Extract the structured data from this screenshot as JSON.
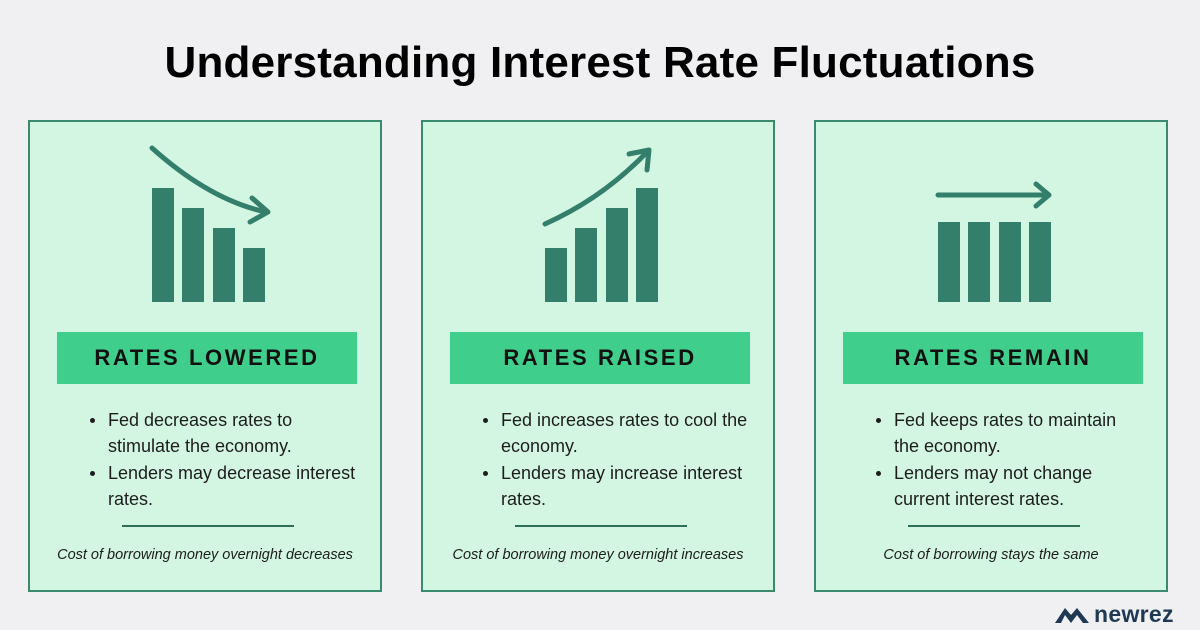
{
  "title": "Understanding Interest Rate Fluctuations",
  "colors": {
    "background": "#f0f0f2",
    "card_fill": "#d2f6e2",
    "card_border": "#3a8a6f",
    "band": "#3fce8b",
    "icon": "#347f6b",
    "logo": "#1f3954"
  },
  "cards": [
    {
      "icon": "bar-chart-falling-arrow-icon",
      "heading": "RATES LOWERED",
      "points": [
        "Fed decreases rates to stimulate the economy.",
        "Lenders may decrease interest rates."
      ],
      "note": "Cost of borrowing money overnight decreases"
    },
    {
      "icon": "bar-chart-rising-arrow-icon",
      "heading": "RATES RAISED",
      "points": [
        "Fed increases rates to cool the economy.",
        "Lenders may increase interest rates."
      ],
      "note": "Cost of borrowing money overnight increases"
    },
    {
      "icon": "bar-chart-flat-arrow-icon",
      "heading": "RATES REMAIN",
      "points": [
        "Fed keeps rates to maintain the economy.",
        "Lenders may not change current interest rates."
      ],
      "note": "Cost of borrowing stays the same"
    }
  ],
  "logo": {
    "icon": "house-roof-logo-icon",
    "text": "newrez"
  }
}
